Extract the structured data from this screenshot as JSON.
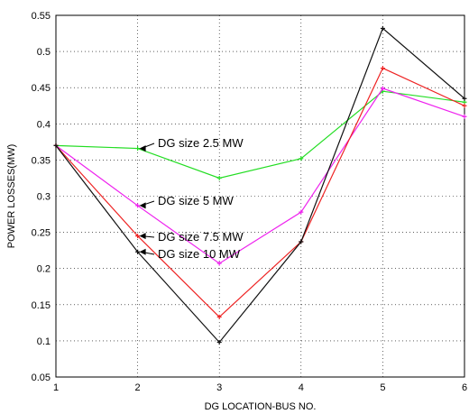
{
  "chart_data": {
    "type": "line",
    "title": "",
    "xlabel": "DG LOCATION-BUS NO.",
    "ylabel": "POWER LOSSES(MW)",
    "x": [
      1,
      2,
      3,
      4,
      5,
      6
    ],
    "xlim": [
      1,
      6
    ],
    "ylim": [
      0.05,
      0.55
    ],
    "xticks": [
      "1",
      "2",
      "3",
      "4",
      "5",
      "6"
    ],
    "yticks": [
      "0.05",
      "0.1",
      "0.15",
      "0.2",
      "0.25",
      "0.3",
      "0.35",
      "0.4",
      "0.45",
      "0.5",
      "0.55"
    ],
    "grid": true,
    "series": [
      {
        "name": "DG size 2.5 MW",
        "color": "#22dd22",
        "values": [
          0.37,
          0.366,
          0.325,
          0.352,
          0.445,
          0.43
        ]
      },
      {
        "name": "DG size 5 MW",
        "color": "#ee22ee",
        "values": [
          0.37,
          0.287,
          0.207,
          0.278,
          0.449,
          0.41
        ]
      },
      {
        "name": "DG size 7.5 MW",
        "color": "#ee2222",
        "values": [
          0.37,
          0.245,
          0.133,
          0.237,
          0.477,
          0.425
        ]
      },
      {
        "name": "DG size 10 MW",
        "color": "#111111",
        "values": [
          0.37,
          0.223,
          0.098,
          0.237,
          0.532,
          0.435
        ]
      }
    ],
    "annotations": [
      {
        "text": "DG size 2.5 MW",
        "x": 2,
        "y": 0.366
      },
      {
        "text": "DG size 5 MW",
        "x": 2,
        "y": 0.287
      },
      {
        "text": "DG size 7.5 MW",
        "x": 2,
        "y": 0.245
      },
      {
        "text": "DG size 10 MW",
        "x": 2,
        "y": 0.223
      }
    ]
  }
}
